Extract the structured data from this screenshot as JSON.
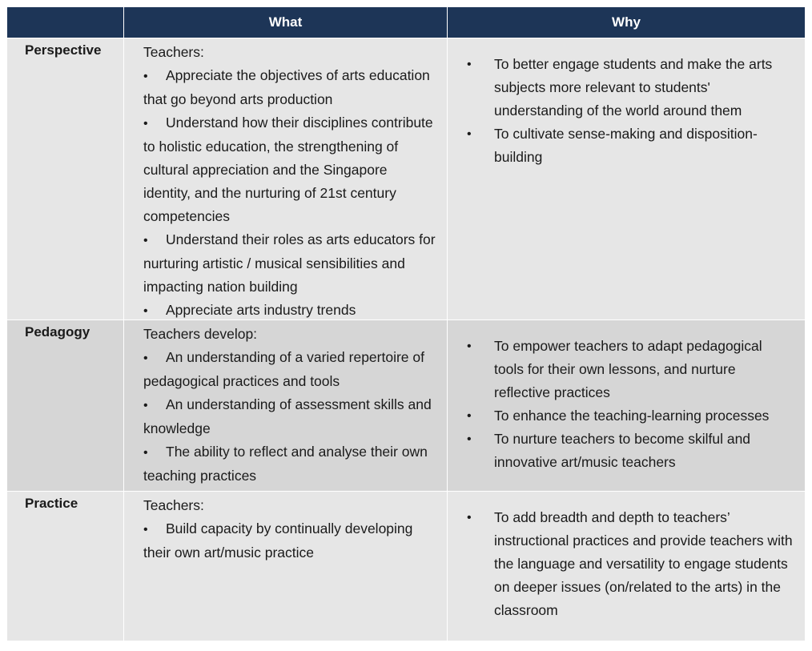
{
  "headers": [
    "",
    "What",
    "Why"
  ],
  "rows": [
    {
      "label": "Perspective",
      "what_intro": "Teachers:",
      "what_items": [
        "Appreciate the objectives of arts education that go beyond arts production",
        "Understand how their disciplines contribute to holistic education, the strengthening of cultural appreciation and the Singapore identity, and the nurturing of 21st century competencies",
        "Understand their roles as arts educators for nurturing artistic / musical sensibilities and impacting nation building",
        "Appreciate arts industry trends"
      ],
      "why_items": [
        "To better engage students and make the arts subjects more relevant to students' understanding of the world around them",
        "To cultivate sense-making and disposition-building"
      ]
    },
    {
      "label": "Pedagogy",
      "what_intro": "Teachers develop:",
      "what_items": [
        "An understanding of a varied repertoire of pedagogical practices and tools",
        "An understanding of assessment skills and knowledge",
        "The ability to reflect and analyse their own teaching practices"
      ],
      "why_items": [
        "To empower teachers to adapt pedagogical tools for their own lessons, and nurture reflective practices",
        "To enhance the teaching-learning processes",
        "To nurture teachers to become skilful and innovative art/music teachers"
      ]
    },
    {
      "label": "Practice",
      "what_intro": "Teachers:",
      "what_items": [
        "Build capacity by continually developing their own art/music practice"
      ],
      "why_items": [
        "To add breadth and depth to teachers’ instructional practices and provide teachers with the language and versatility to engage students on deeper issues (on/related to the arts) in the classroom"
      ]
    }
  ]
}
